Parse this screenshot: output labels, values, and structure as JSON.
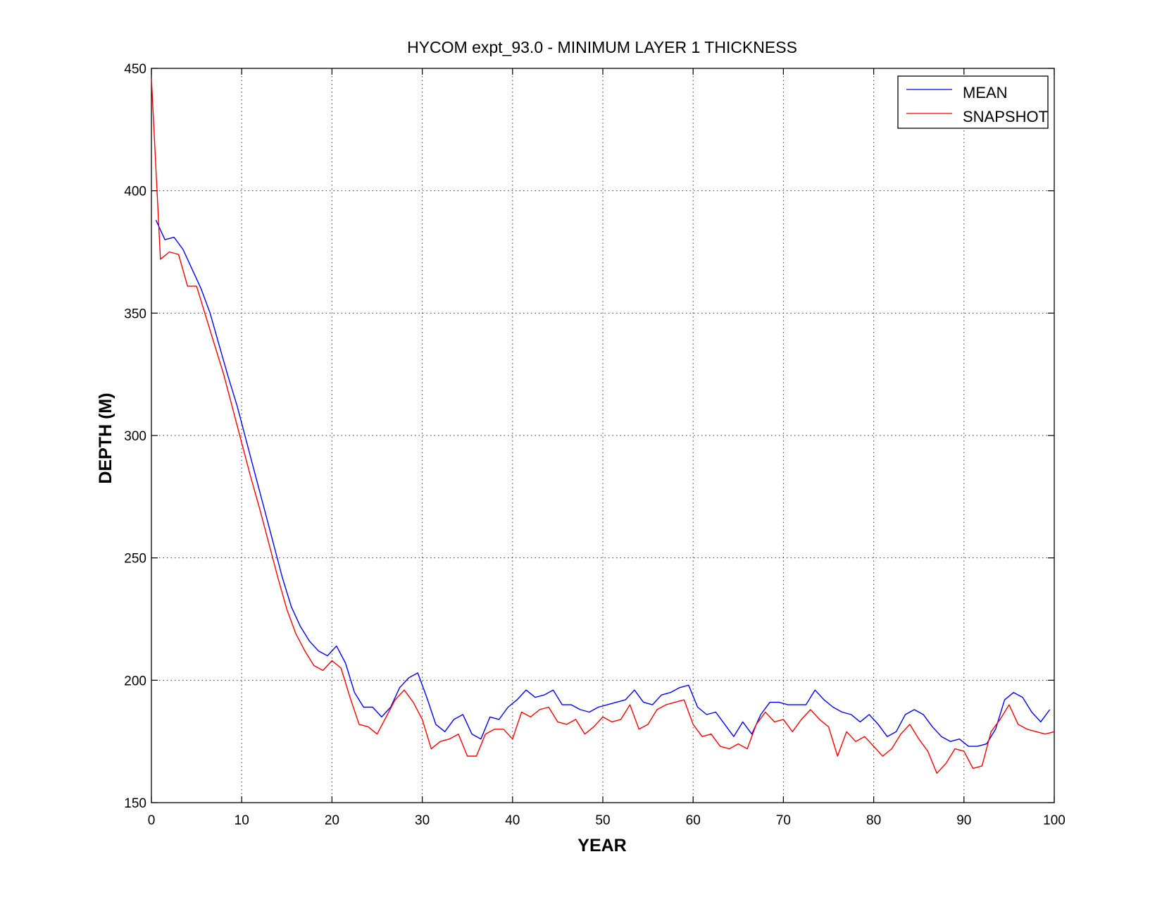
{
  "chart_data": {
    "type": "line",
    "title": "HYCOM expt_93.0 - MINIMUM LAYER 1 THICKNESS",
    "xlabel": "YEAR",
    "ylabel": "DEPTH (M)",
    "xlim": [
      0,
      100
    ],
    "ylim": [
      150,
      450
    ],
    "xticks": [
      "0",
      "10",
      "20",
      "30",
      "40",
      "50",
      "60",
      "70",
      "80",
      "90",
      "100"
    ],
    "yticks": [
      "150",
      "200",
      "250",
      "300",
      "350",
      "400",
      "450"
    ],
    "grid": true,
    "legend_position": "top-right",
    "series": [
      {
        "name": "MEAN",
        "color": "#0000ff",
        "x": [
          0.5,
          1.5,
          2.5,
          3.5,
          4.5,
          5.5,
          6.5,
          7.5,
          8.5,
          9.5,
          10.5,
          11.5,
          12.5,
          13.5,
          14.5,
          15.5,
          16.5,
          17.5,
          18.5,
          19.5,
          20.5,
          21.5,
          22.5,
          23.5,
          24.5,
          25.5,
          26.5,
          27.5,
          28.5,
          29.5,
          30.5,
          31.5,
          32.5,
          33.5,
          34.5,
          35.5,
          36.5,
          37.5,
          38.5,
          39.5,
          40.5,
          41.5,
          42.5,
          43.5,
          44.5,
          45.5,
          46.5,
          47.5,
          48.5,
          49.5,
          50.5,
          51.5,
          52.5,
          53.5,
          54.5,
          55.5,
          56.5,
          57.5,
          58.5,
          59.5,
          60.5,
          61.5,
          62.5,
          63.5,
          64.5,
          65.5,
          66.5,
          67.5,
          68.5,
          69.5,
          70.5,
          71.5,
          72.5,
          73.5,
          74.5,
          75.5,
          76.5,
          77.5,
          78.5,
          79.5,
          80.5,
          81.5,
          82.5,
          83.5,
          84.5,
          85.5,
          86.5,
          87.5,
          88.5,
          89.5,
          90.5,
          91.5,
          92.5,
          93.5,
          94.5,
          95.5,
          96.5,
          97.5,
          98.5,
          99.5
        ],
        "y": [
          388,
          380,
          381,
          376,
          368,
          360,
          350,
          337,
          324,
          312,
          298,
          284,
          270,
          256,
          242,
          230,
          222,
          216,
          212,
          210,
          214,
          207,
          195,
          189,
          189,
          185,
          189,
          197,
          201,
          203,
          193,
          182,
          179,
          184,
          186,
          178,
          176,
          185,
          184,
          189,
          192,
          196,
          193,
          194,
          196,
          190,
          190,
          188,
          187,
          189,
          190,
          191,
          192,
          196,
          191,
          190,
          194,
          195,
          197,
          198,
          189,
          186,
          187,
          182,
          177,
          183,
          178,
          186,
          191,
          191,
          190,
          190,
          190,
          196,
          192,
          189,
          187,
          186,
          183,
          186,
          182,
          177,
          179,
          186,
          188,
          186,
          181,
          177,
          175,
          176,
          173,
          173,
          174,
          180,
          192,
          195,
          193,
          187,
          183,
          188
        ]
      },
      {
        "name": "SNAPSHOT",
        "color": "#ff0000",
        "x": [
          0,
          1,
          2,
          3,
          4,
          5,
          6,
          7,
          8,
          9,
          10,
          11,
          12,
          13,
          14,
          15,
          16,
          17,
          18,
          19,
          20,
          21,
          22,
          23,
          24,
          25,
          26,
          27,
          28,
          29,
          30,
          31,
          32,
          33,
          34,
          35,
          36,
          37,
          38,
          39,
          40,
          41,
          42,
          43,
          44,
          45,
          46,
          47,
          48,
          49,
          50,
          51,
          52,
          53,
          54,
          55,
          56,
          57,
          58,
          59,
          60,
          61,
          62,
          63,
          64,
          65,
          66,
          67,
          68,
          69,
          70,
          71,
          72,
          73,
          74,
          75,
          76,
          77,
          78,
          79,
          80,
          81,
          82,
          83,
          84,
          85,
          86,
          87,
          88,
          89,
          90,
          91,
          92,
          93,
          94,
          95,
          96,
          97,
          98,
          99,
          100
        ],
        "y": [
          446,
          372,
          375,
          374,
          361,
          361,
          349,
          337,
          325,
          311,
          297,
          283,
          270,
          256,
          242,
          229,
          219,
          212,
          206,
          204,
          208,
          205,
          193,
          182,
          181,
          178,
          185,
          192,
          196,
          191,
          184,
          172,
          175,
          176,
          178,
          169,
          169,
          178,
          180,
          180,
          176,
          187,
          185,
          188,
          189,
          183,
          182,
          184,
          178,
          181,
          185,
          183,
          184,
          190,
          180,
          182,
          188,
          190,
          191,
          192,
          182,
          177,
          178,
          173,
          172,
          174,
          172,
          182,
          187,
          183,
          184,
          179,
          184,
          188,
          184,
          181,
          169,
          179,
          175,
          177,
          173,
          169,
          172,
          178,
          182,
          176,
          171,
          162,
          166,
          172,
          171,
          164,
          165,
          179,
          184,
          190,
          182,
          180,
          179,
          178,
          179
        ]
      }
    ]
  }
}
